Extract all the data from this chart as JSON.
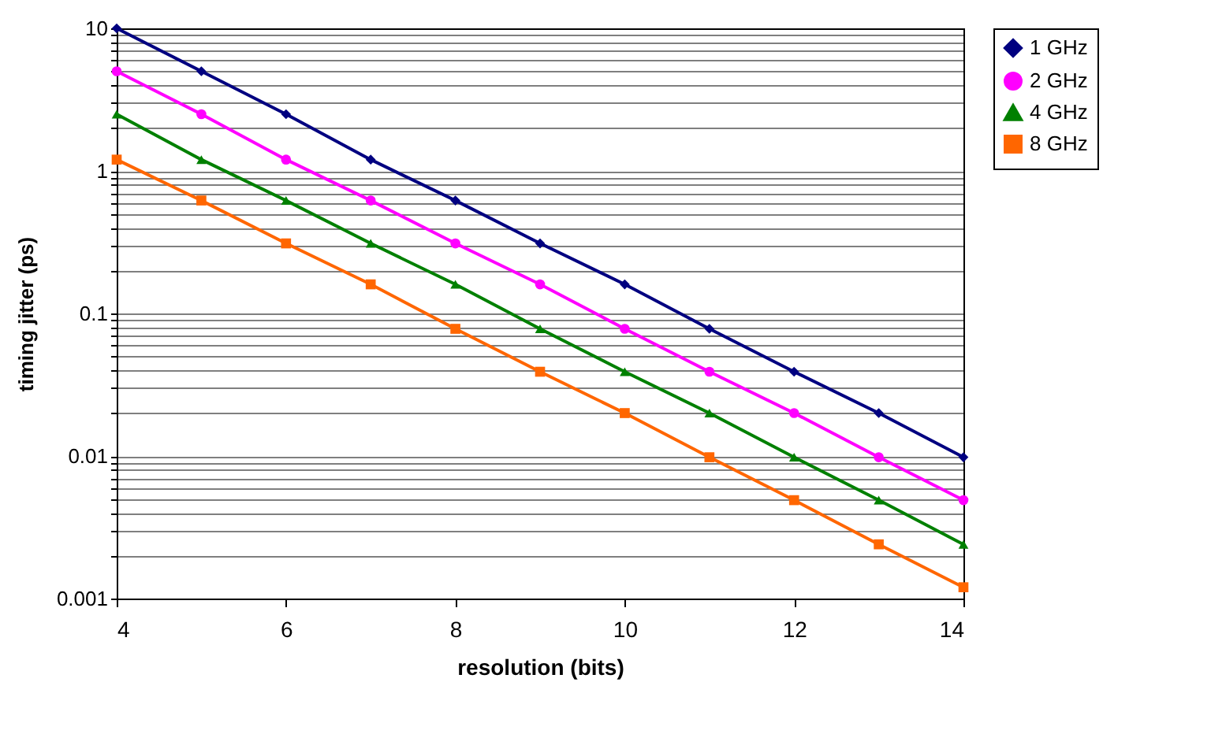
{
  "chart_data": {
    "type": "line",
    "xlabel": "resolution (bits)",
    "ylabel": "timing jitter (ps)",
    "x": [
      4,
      5,
      6,
      7,
      8,
      9,
      10,
      11,
      12,
      13,
      14
    ],
    "series": [
      {
        "name": "1 GHz",
        "color": "#000080",
        "marker": "diamond",
        "values": [
          10,
          5,
          2.5,
          1.2,
          0.62,
          0.31,
          0.16,
          0.078,
          0.039,
          0.02,
          0.0098
        ]
      },
      {
        "name": "2 GHz",
        "color": "#ff00ff",
        "marker": "circle",
        "values": [
          5,
          2.5,
          1.2,
          0.62,
          0.31,
          0.16,
          0.078,
          0.039,
          0.02,
          0.0098,
          0.0049
        ]
      },
      {
        "name": "4 GHz",
        "color": "#008000",
        "marker": "triangle",
        "values": [
          2.5,
          1.2,
          0.62,
          0.31,
          0.16,
          0.078,
          0.039,
          0.02,
          0.0098,
          0.0049,
          0.0024
        ]
      },
      {
        "name": "8 GHz",
        "color": "#ff6600",
        "marker": "square",
        "values": [
          1.2,
          0.62,
          0.31,
          0.16,
          0.078,
          0.039,
          0.02,
          0.0098,
          0.0049,
          0.0024,
          0.0012
        ]
      }
    ],
    "xlim": [
      4,
      14
    ],
    "xticks": [
      4,
      6,
      8,
      10,
      12,
      14
    ],
    "ylim": [
      0.001,
      10
    ],
    "yticks": [
      0.001,
      {
        "value": 0.002,
        "label": null
      },
      {
        "value": 0.003,
        "label": null
      },
      {
        "value": 0.004,
        "label": null
      },
      {
        "value": 0.005,
        "label": null
      },
      {
        "value": 0.006,
        "label": null
      },
      {
        "value": 0.007,
        "label": null
      },
      {
        "value": 0.008,
        "label": null
      },
      {
        "value": 0.009,
        "label": null
      },
      0.01,
      {
        "value": 0.02,
        "label": null
      },
      {
        "value": 0.03,
        "label": null
      },
      {
        "value": 0.04,
        "label": null
      },
      {
        "value": 0.05,
        "label": null
      },
      {
        "value": 0.06,
        "label": null
      },
      {
        "value": 0.07,
        "label": null
      },
      {
        "value": 0.08,
        "label": null
      },
      {
        "value": 0.09,
        "label": null
      },
      0.1,
      {
        "value": 0.2,
        "label": null
      },
      {
        "value": 0.3,
        "label": null
      },
      {
        "value": 0.4,
        "label": null
      },
      {
        "value": 0.5,
        "label": null
      },
      {
        "value": 0.6,
        "label": null
      },
      {
        "value": 0.7,
        "label": null
      },
      {
        "value": 0.8,
        "label": null
      },
      {
        "value": 0.9,
        "label": null
      },
      1,
      {
        "value": 2,
        "label": null
      },
      {
        "value": 3,
        "label": null
      },
      {
        "value": 4,
        "label": null
      },
      {
        "value": 5,
        "label": null
      },
      {
        "value": 6,
        "label": null
      },
      {
        "value": 7,
        "label": null
      },
      {
        "value": 8,
        "label": null
      },
      {
        "value": 9,
        "label": null
      },
      10
    ],
    "log": "y",
    "grid": "y",
    "legend": "right"
  }
}
